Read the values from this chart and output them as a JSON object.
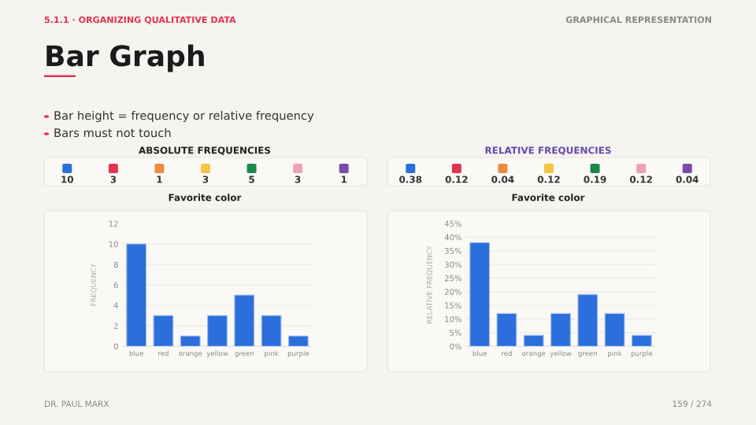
{
  "chart_data": [
    {
      "type": "bar",
      "subtitle": "ABSOLUTE FREQUENCIES",
      "title": "Favorite color",
      "ylabel": "FREQUENCY",
      "categories": [
        "blue",
        "red",
        "orange",
        "yellow",
        "green",
        "pink",
        "purple"
      ],
      "values": [
        10,
        3,
        1,
        3,
        5,
        3,
        1
      ],
      "color": "#2a6fdb",
      "ylim": [
        0,
        12
      ],
      "yticks": [
        0,
        2,
        4,
        6,
        8,
        10,
        12
      ],
      "grid": "y",
      "annotations": [
        "10",
        "3",
        "1",
        "3",
        "5",
        "3",
        "1",
        "5.1.1 · ORGANIZING QUALITATIVE DATA",
        "GRAPHICAL REPRESENTATION",
        "Bar Graph",
        "Bar height = frequency or relative frequency",
        "Bars must not touch",
        "DR. PAUL MARX",
        "159 / 274"
      ]
    },
    {
      "type": "bar",
      "subtitle": "RELATIVE FREQUENCIES",
      "title": "Favorite color",
      "ylabel": "RELATIVE FREQUENCY",
      "categories": [
        "blue",
        "red",
        "orange",
        "yellow",
        "green",
        "pink",
        "purple"
      ],
      "values": [
        38,
        12,
        4,
        12,
        19,
        12,
        4
      ],
      "color": "#2a6fdb",
      "annotations": [
        "0.38",
        "0.12",
        "0.04",
        "0.12",
        "0.19",
        "0.12",
        "0.04"
      ],
      "ylim": [
        0,
        45
      ],
      "yticks": [
        {
          "value": 0,
          "label": "0%"
        },
        {
          "value": 5,
          "label": "5%"
        },
        {
          "value": 10,
          "label": "10%"
        },
        {
          "value": 15,
          "label": "15%"
        },
        {
          "value": 20,
          "label": "20%"
        },
        {
          "value": 25,
          "label": "25%"
        },
        {
          "value": 30,
          "label": "30%"
        },
        {
          "value": 35,
          "label": "35%"
        },
        {
          "value": 40,
          "label": "40%"
        },
        {
          "value": 45,
          "label": "45%"
        }
      ],
      "grid": "y"
    }
  ]
}
